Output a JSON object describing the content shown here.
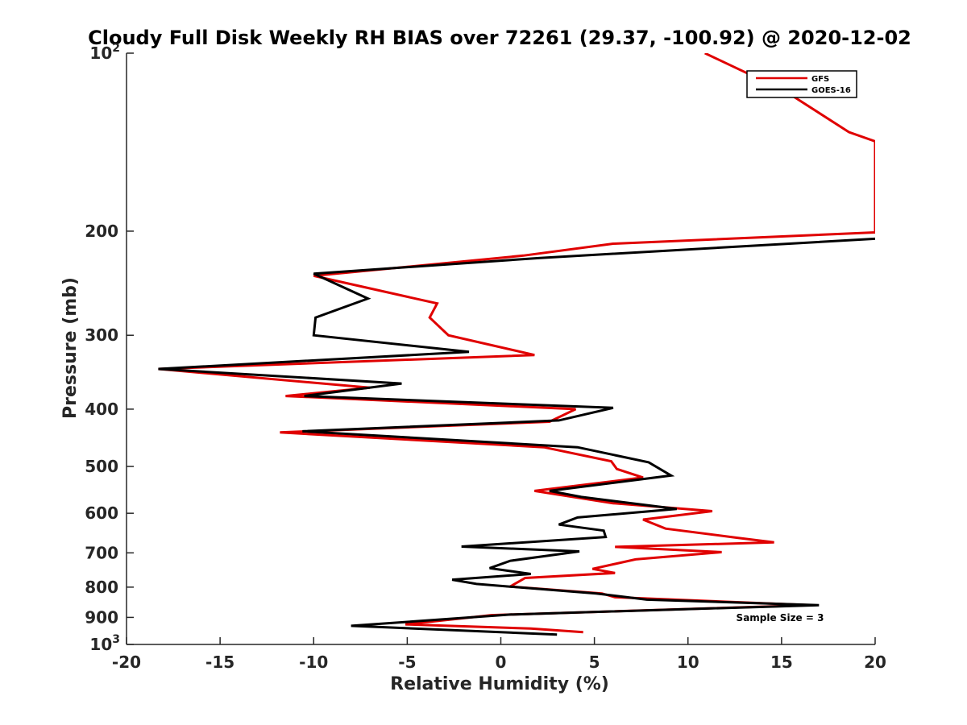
{
  "chart_data": {
    "type": "line",
    "title": "Cloudy Full Disk Weekly RH BIAS over 72261 (29.37, -100.92) @ 2020-12-02",
    "xlabel": "Relative Humidity (%)",
    "ylabel": "Pressure (mb)",
    "xlim": [
      -20,
      20
    ],
    "ylim": [
      100,
      1000
    ],
    "yscale": "log",
    "y_reversed": true,
    "xticks": [
      "-20",
      "-15",
      "-10",
      "-5",
      "0",
      "5",
      "10",
      "15",
      "20"
    ],
    "yticks": [
      {
        "value": 100,
        "label": "10",
        "sup": "2"
      },
      {
        "value": 200,
        "label": "200",
        "sup": ""
      },
      {
        "value": 300,
        "label": "300",
        "sup": ""
      },
      {
        "value": 400,
        "label": "400",
        "sup": ""
      },
      {
        "value": 500,
        "label": "500",
        "sup": ""
      },
      {
        "value": 600,
        "label": "600",
        "sup": ""
      },
      {
        "value": 700,
        "label": "700",
        "sup": ""
      },
      {
        "value": 800,
        "label": "800",
        "sup": ""
      },
      {
        "value": 900,
        "label": "900",
        "sup": ""
      },
      {
        "value": 1000,
        "label": "10",
        "sup": "3"
      }
    ],
    "legend_position": "top-right",
    "annotation": "Sample Size = 3",
    "series": [
      {
        "name": "GFS",
        "color": "#e00000",
        "points": [
          [
            10.9,
            100
          ],
          [
            15.2,
            116
          ],
          [
            18.6,
            136
          ],
          [
            20.0,
            141
          ],
          [
            20.0,
            201
          ],
          [
            6.0,
            210
          ],
          [
            1.2,
            220
          ],
          [
            -10.0,
            238
          ],
          [
            -3.4,
            265
          ],
          [
            -3.8,
            280
          ],
          [
            -2.8,
            300
          ],
          [
            1.8,
            324
          ],
          [
            -18.3,
            342
          ],
          [
            -7.0,
            368
          ],
          [
            -11.5,
            380
          ],
          [
            4.0,
            400
          ],
          [
            2.6,
            420
          ],
          [
            -11.8,
            438
          ],
          [
            2.3,
            464
          ],
          [
            5.9,
            490
          ],
          [
            6.2,
            505
          ],
          [
            7.6,
            522
          ],
          [
            1.8,
            550
          ],
          [
            6.0,
            577
          ],
          [
            11.3,
            595
          ],
          [
            7.6,
            615
          ],
          [
            8.8,
            637
          ],
          [
            12.6,
            660
          ],
          [
            14.6,
            672
          ],
          [
            6.1,
            684
          ],
          [
            11.8,
            698
          ],
          [
            7.2,
            718
          ],
          [
            4.9,
            745
          ],
          [
            6.1,
            757
          ],
          [
            1.3,
            772
          ],
          [
            0.5,
            798
          ],
          [
            5.4,
            820
          ],
          [
            6.1,
            832
          ],
          [
            16.6,
            858
          ],
          [
            -0.5,
            892
          ],
          [
            -5.1,
            925
          ],
          [
            1.6,
            940
          ],
          [
            4.4,
            953
          ]
        ]
      },
      {
        "name": "GOES-16",
        "color": "#000000",
        "points": [
          [
            20.0,
            206
          ],
          [
            2.1,
            222
          ],
          [
            -10.0,
            236
          ],
          [
            -7.1,
            260
          ],
          [
            -9.9,
            280
          ],
          [
            -10.0,
            300
          ],
          [
            -1.7,
            320
          ],
          [
            -18.3,
            342
          ],
          [
            -5.3,
            362
          ],
          [
            -10.5,
            380
          ],
          [
            6.0,
            398
          ],
          [
            3.1,
            418
          ],
          [
            -10.6,
            436
          ],
          [
            4.1,
            464
          ],
          [
            7.9,
            492
          ],
          [
            9.1,
            518
          ],
          [
            2.6,
            550
          ],
          [
            4.3,
            563
          ],
          [
            9.4,
            590
          ],
          [
            4.1,
            610
          ],
          [
            3.1,
            627
          ],
          [
            5.5,
            642
          ],
          [
            5.6,
            658
          ],
          [
            -2.1,
            683
          ],
          [
            4.2,
            696
          ],
          [
            0.5,
            722
          ],
          [
            -0.6,
            743
          ],
          [
            1.6,
            760
          ],
          [
            -2.6,
            777
          ],
          [
            -1.3,
            790
          ],
          [
            5.1,
            820
          ],
          [
            7.8,
            840
          ],
          [
            17.0,
            858
          ],
          [
            0.5,
            890
          ],
          [
            -8.0,
            930
          ],
          [
            3.0,
            962
          ]
        ]
      }
    ]
  }
}
